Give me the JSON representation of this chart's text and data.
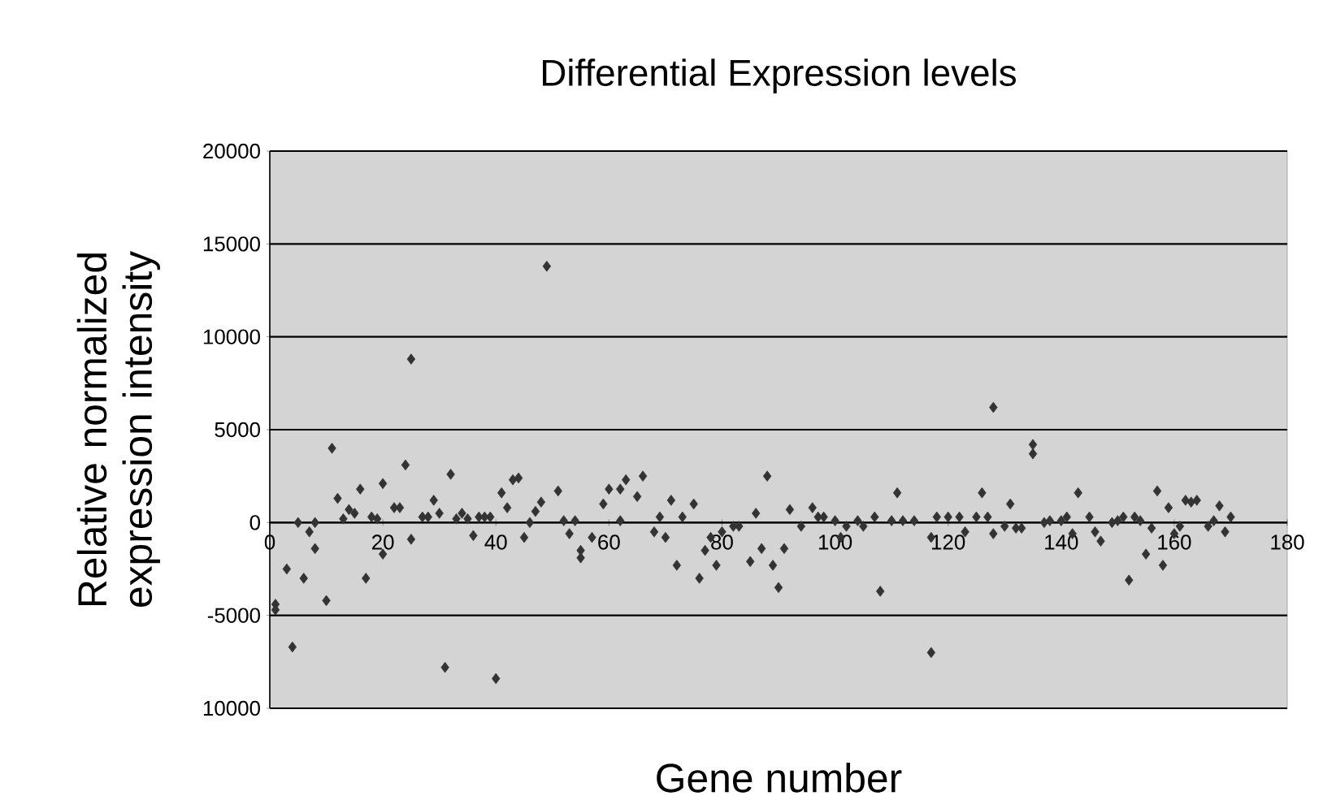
{
  "chart_data": {
    "type": "scatter",
    "title": "Differential Expression levels",
    "xlabel": "Gene number",
    "ylabel": "Relative normalized expression intensity",
    "xlim": [
      0,
      180
    ],
    "xticks": [
      0,
      20,
      40,
      60,
      80,
      100,
      120,
      140,
      160,
      180
    ],
    "ylim": [
      -10000,
      20000
    ],
    "yticks": [
      {
        "value": -10000,
        "label": "10000"
      },
      -5000,
      0,
      5000,
      10000,
      15000,
      20000
    ],
    "grid": "y",
    "marker": "diamond",
    "series": [
      {
        "color": "#333333",
        "x": [
          1,
          1,
          3,
          4,
          5,
          6,
          7,
          8,
          8,
          10,
          11,
          12,
          13,
          14,
          15,
          16,
          17,
          18,
          19,
          20,
          20,
          22,
          23,
          24,
          25,
          25,
          27,
          28,
          29,
          30,
          31,
          32,
          33,
          34,
          35,
          36,
          37,
          38,
          39,
          40,
          41,
          42,
          43,
          44,
          45,
          46,
          47,
          48,
          49,
          51,
          52,
          53,
          54,
          55,
          55,
          57,
          59,
          60,
          62,
          62,
          63,
          65,
          66,
          68,
          69,
          70,
          71,
          72,
          73,
          75,
          76,
          77,
          78,
          79,
          80,
          82,
          83,
          85,
          86,
          87,
          88,
          89,
          90,
          91,
          92,
          94,
          96,
          97,
          98,
          100,
          101,
          102,
          104,
          105,
          107,
          108,
          110,
          111,
          112,
          114,
          117,
          117,
          118,
          120,
          122,
          123,
          125,
          126,
          127,
          128,
          128,
          130,
          131,
          132,
          133,
          135,
          135,
          137,
          138,
          140,
          141,
          142,
          143,
          145,
          146,
          147,
          149,
          150,
          151,
          152,
          153,
          154,
          155,
          156,
          157,
          158,
          159,
          160,
          161,
          162,
          163,
          164,
          166,
          167,
          168,
          169,
          170
        ],
        "values": [
          -4400,
          -4700,
          -2500,
          -6700,
          0,
          -3000,
          -500,
          0,
          -1400,
          -4200,
          4000,
          1300,
          200,
          700,
          500,
          1800,
          -3000,
          300,
          200,
          -1700,
          2100,
          800,
          800,
          3100,
          8800,
          -900,
          300,
          300,
          1200,
          500,
          -7800,
          2600,
          200,
          500,
          200,
          -700,
          300,
          300,
          300,
          -8400,
          1600,
          800,
          2300,
          2400,
          -800,
          0,
          600,
          1100,
          13800,
          1700,
          100,
          -600,
          100,
          -1500,
          -1900,
          -800,
          1000,
          1800,
          100,
          1800,
          2300,
          1400,
          2500,
          -500,
          300,
          -800,
          1200,
          -2300,
          300,
          1000,
          -3000,
          -1500,
          -800,
          -2300,
          -500,
          -200,
          -200,
          -2100,
          500,
          -1400,
          2500,
          -2300,
          -3500,
          -1400,
          700,
          -200,
          800,
          300,
          300,
          100,
          -800,
          -200,
          100,
          -200,
          300,
          -3700,
          100,
          1600,
          100,
          100,
          -800,
          -7000,
          300,
          300,
          300,
          -500,
          300,
          1600,
          300,
          -600,
          6200,
          -200,
          1000,
          -300,
          -300,
          3700,
          4200,
          0,
          100,
          100,
          300,
          -600,
          1600,
          300,
          -500,
          -1000,
          0,
          100,
          300,
          -3100,
          300,
          100,
          -1700,
          -300,
          1700,
          -2300,
          800,
          -600,
          -200,
          1200,
          1100,
          1200,
          -200,
          100,
          900,
          -500,
          300
        ]
      }
    ]
  }
}
